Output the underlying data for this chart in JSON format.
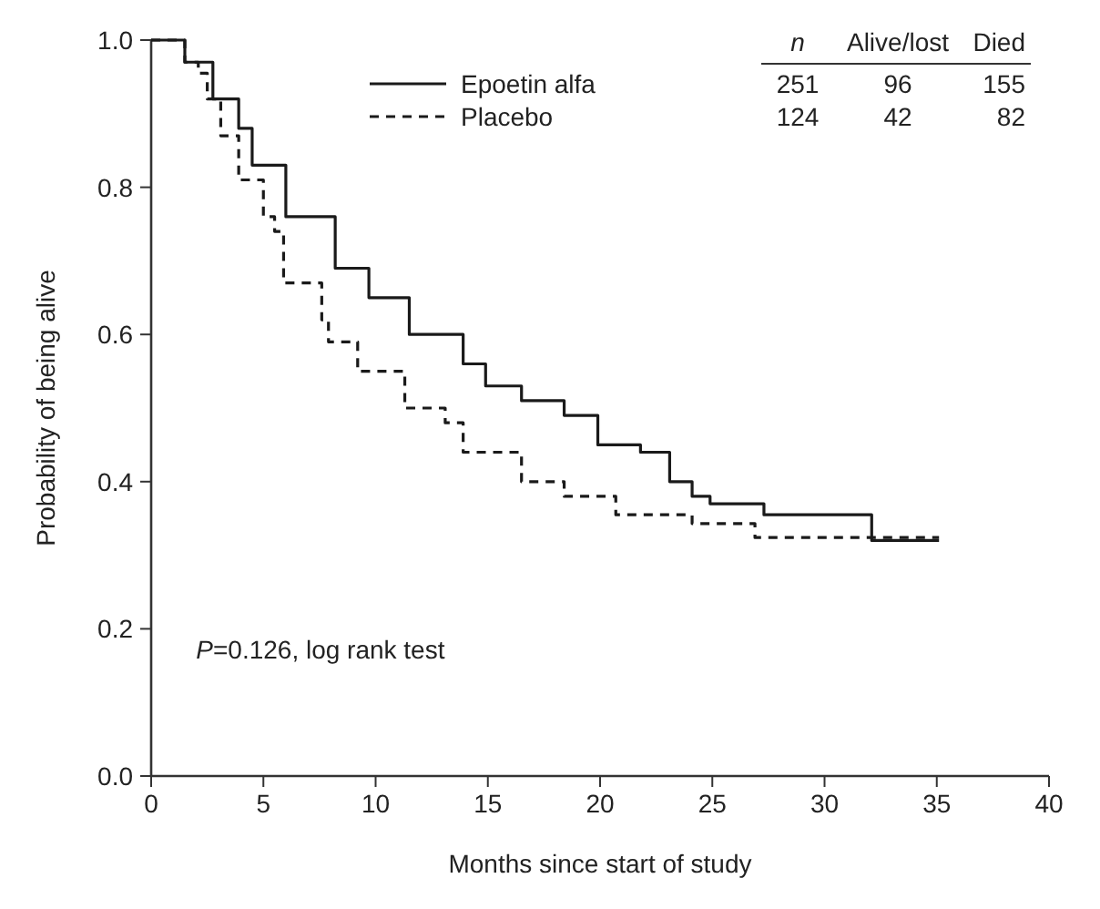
{
  "chart_data": {
    "type": "step",
    "xlabel": "Months since start of study",
    "ylabel": "Probability of being alive",
    "xlim": [
      0,
      40
    ],
    "xticks": [
      {
        "value": 0,
        "label": "0"
      },
      {
        "value": 5,
        "label": "5"
      },
      {
        "value": 10,
        "label": "10"
      },
      {
        "value": 15,
        "label": "15"
      },
      {
        "value": 20,
        "label": "20"
      },
      {
        "value": 25,
        "label": "25"
      },
      {
        "value": 30,
        "label": "30"
      },
      {
        "value": 35,
        "label": "35"
      },
      {
        "value": 40,
        "label": "40"
      }
    ],
    "ylim": [
      0,
      1
    ],
    "yticks": [
      {
        "value": 0,
        "label": "0.0"
      },
      {
        "value": 0.2,
        "label": "0.2"
      },
      {
        "value": 0.4,
        "label": "0.4"
      },
      {
        "value": 0.6,
        "label": "0.6"
      },
      {
        "value": 0.8,
        "label": "0.8"
      },
      {
        "value": 1,
        "label": "1.0"
      }
    ],
    "grid": false,
    "legend": "top",
    "marker": "none",
    "series": [
      {
        "name": "Epoetin alfa",
        "color": "#1a1a1a",
        "line_style": "solid",
        "x": [
          0,
          1.5,
          2.75,
          3.9,
          4.5,
          6.0,
          8.2,
          9.7,
          11.5,
          13.9,
          14.9,
          16.5,
          18.4,
          19.9,
          21.8,
          23.1,
          24.1,
          24.9,
          27.3,
          32.1,
          35.1
        ],
        "values": [
          1.0,
          0.97,
          0.92,
          0.88,
          0.83,
          0.76,
          0.69,
          0.65,
          0.6,
          0.56,
          0.53,
          0.51,
          0.49,
          0.45,
          0.44,
          0.4,
          0.38,
          0.37,
          0.355,
          0.32,
          0.32
        ]
      },
      {
        "name": "Placebo",
        "color": "#1a1a1a",
        "line_style": "dashed",
        "x": [
          0,
          1.5,
          2.1,
          2.5,
          3.1,
          3.9,
          5.0,
          5.5,
          5.9,
          7.6,
          7.9,
          9.2,
          11.3,
          13.1,
          13.9,
          16.5,
          18.4,
          20.7,
          24.1,
          26.9,
          35.1
        ],
        "values": [
          1.0,
          0.97,
          0.955,
          0.92,
          0.87,
          0.81,
          0.76,
          0.74,
          0.67,
          0.62,
          0.59,
          0.55,
          0.5,
          0.48,
          0.44,
          0.4,
          0.38,
          0.355,
          0.343,
          0.324,
          0.324
        ]
      }
    ],
    "annotations": [
      "n",
      "Alive/lost",
      "Died",
      "251",
      "96",
      "155",
      "124",
      "42",
      "82",
      "P=0.126, log rank test"
    ]
  }
}
